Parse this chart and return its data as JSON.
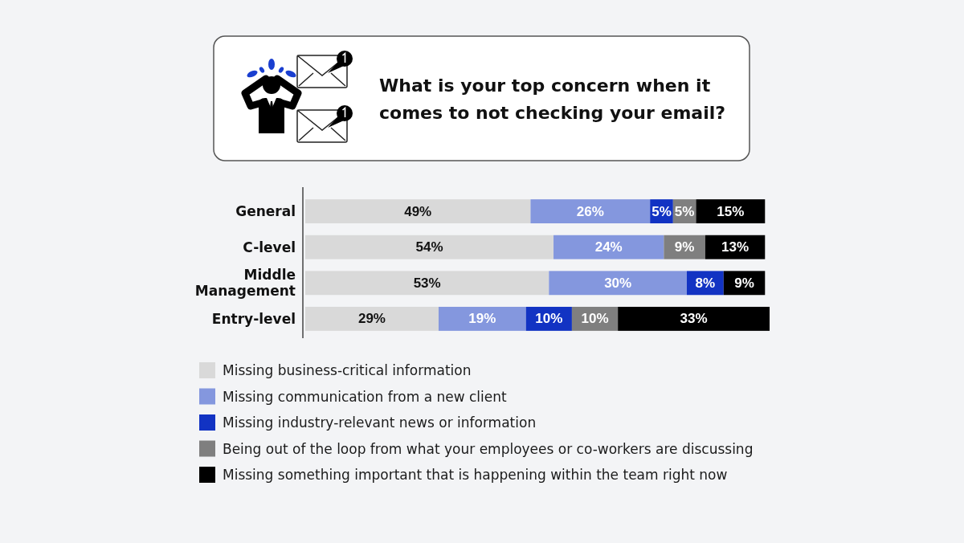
{
  "chart_data": {
    "type": "bar",
    "orientation": "horizontal",
    "stacked": true,
    "title": "What is your top concern when it comes to not checking your email?",
    "categories": [
      "General",
      "C-level",
      "Middle Management",
      "Entry-level"
    ],
    "series": [
      {
        "name": "Missing business-critical information",
        "color": "#d9d9d9",
        "values": [
          49,
          54,
          53,
          29
        ],
        "value_labels": [
          "49%",
          "54%",
          "53%",
          "29%"
        ]
      },
      {
        "name": "Missing communication from a new client",
        "color": "#8497de",
        "values": [
          26,
          24,
          30,
          19
        ],
        "value_labels": [
          "26%",
          "24%",
          "30%",
          "19%"
        ]
      },
      {
        "name": "Missing industry-relevant news or information",
        "color": "#1233c3",
        "values": [
          5,
          null,
          8,
          10
        ],
        "value_labels": [
          "5%",
          null,
          "8%",
          "10%"
        ]
      },
      {
        "name": "Being out of the loop from what your employees or co-workers are discussing",
        "color": "#7f7f7f",
        "values": [
          5,
          9,
          null,
          10
        ],
        "value_labels": [
          "5%",
          "9%",
          null,
          "10%"
        ]
      },
      {
        "name": "Missing something important that is happening within the team right now",
        "color": "#000000",
        "values": [
          15,
          13,
          9,
          33
        ],
        "value_labels": [
          "15%",
          "13%",
          "9%",
          "33%"
        ]
      }
    ],
    "legend": "bottom"
  }
}
